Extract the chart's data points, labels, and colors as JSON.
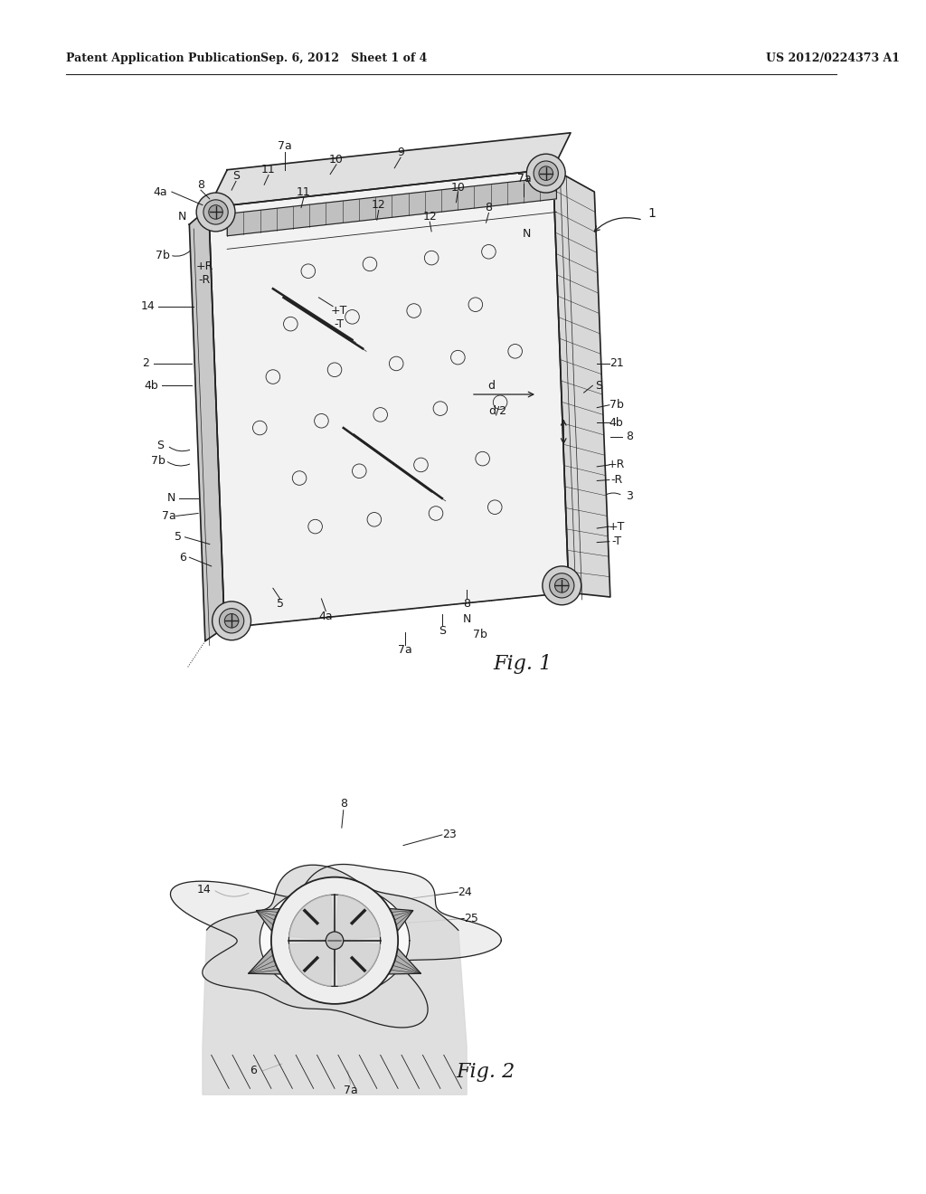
{
  "bg_color": "#ffffff",
  "header_left": "Patent Application Publication",
  "header_mid": "Sep. 6, 2012   Sheet 1 of 4",
  "header_right": "US 2012/0224373 A1",
  "fig1_label": "Fig. 1",
  "fig2_label": "Fig. 2",
  "text_color": "#1a1a1a",
  "line_color": "#222222",
  "lw_main": 1.2,
  "lw_thin": 0.7,
  "lw_detail": 0.5
}
